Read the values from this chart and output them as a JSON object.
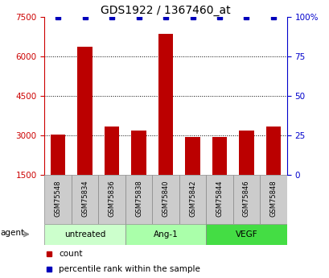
{
  "title": "GDS1922 / 1367460_at",
  "samples": [
    "GSM75548",
    "GSM75834",
    "GSM75836",
    "GSM75838",
    "GSM75840",
    "GSM75842",
    "GSM75844",
    "GSM75846",
    "GSM75848"
  ],
  "counts": [
    3050,
    6350,
    3350,
    3200,
    6850,
    2950,
    2950,
    3200,
    3350
  ],
  "percentile_ranks": [
    100,
    100,
    100,
    100,
    100,
    100,
    100,
    100,
    100
  ],
  "ylim_left": [
    1500,
    7500
  ],
  "ylim_right": [
    0,
    100
  ],
  "yticks_left": [
    1500,
    3000,
    4500,
    6000,
    7500
  ],
  "yticks_right": [
    0,
    25,
    50,
    75,
    100
  ],
  "yticklabels_right": [
    "0",
    "25",
    "50",
    "75",
    "100%"
  ],
  "grid_values": [
    3000,
    4500,
    6000
  ],
  "bar_color": "#bb0000",
  "square_color": "#0000bb",
  "groups": [
    {
      "label": "untreated",
      "start": 0,
      "end": 3,
      "color": "#ccffcc"
    },
    {
      "label": "Ang-1",
      "start": 3,
      "end": 6,
      "color": "#aaffaa"
    },
    {
      "label": "VEGF",
      "start": 6,
      "end": 9,
      "color": "#44dd44"
    }
  ],
  "xlabel_agent": "agent",
  "legend_count_label": "count",
  "legend_percentile_label": "percentile rank within the sample",
  "title_fontsize": 10,
  "axis_label_color_left": "#cc0000",
  "axis_label_color_right": "#0000cc",
  "sample_box_color": "#cccccc",
  "bar_bottom": 1500
}
